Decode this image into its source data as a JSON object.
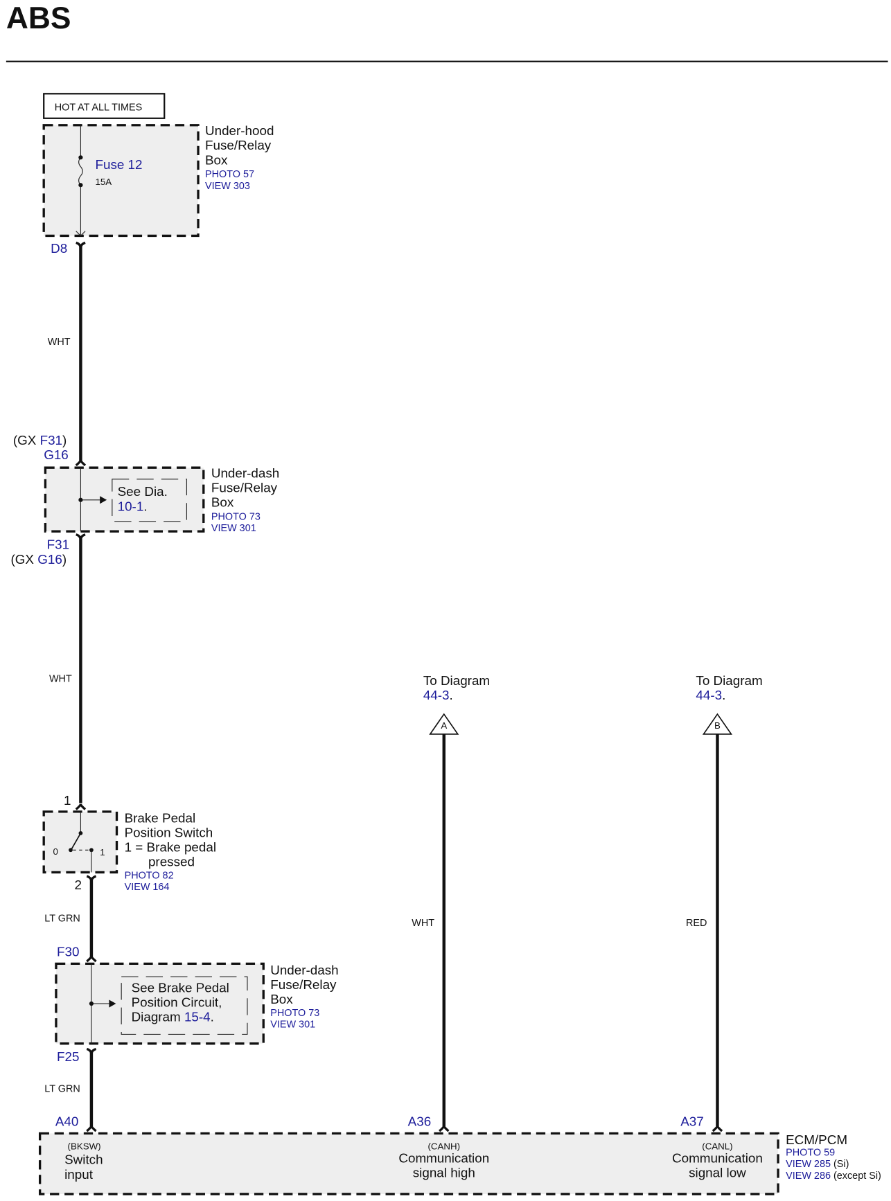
{
  "title": "ABS",
  "power_label": "HOT AT ALL TIMES",
  "underhood_box": {
    "name_lines": [
      "Under-hood",
      "Fuse/Relay",
      "Box"
    ],
    "photo": "PHOTO 57",
    "view": "VIEW 303",
    "fuse": "Fuse 12",
    "rating": "15A",
    "terminal": "D8"
  },
  "wire1_color": "WHT",
  "underdash_box_1": {
    "name_lines": [
      "Under-dash",
      "Fuse/Relay",
      "Box"
    ],
    "photo": "PHOTO 73",
    "view": "VIEW 301",
    "top_gx_prefix": "(GX ",
    "top_gx_terminal": "F31",
    "top_gx_suffix": ")",
    "top_terminal": "G16",
    "bottom_terminal": "F31",
    "bottom_gx_prefix": "(GX ",
    "bottom_gx_terminal": "G16",
    "bottom_gx_suffix": ")",
    "ref_text": "See Dia.",
    "ref_diagram": "10-1",
    "ref_period": "."
  },
  "wire2_color": "WHT",
  "brake_switch": {
    "pin_in": "1",
    "pin_out": "2",
    "pos0": "0",
    "pos1": "1",
    "name_lines": [
      "Brake Pedal",
      "Position Switch",
      "1 = Brake pedal",
      "pressed"
    ],
    "photo": "PHOTO 82",
    "view": "VIEW 164"
  },
  "wire3_color": "LT GRN",
  "underdash_box_2": {
    "name_lines": [
      "Under-dash",
      "Fuse/Relay",
      "Box"
    ],
    "photo": "PHOTO 73",
    "view": "VIEW 301",
    "top_terminal": "F30",
    "bottom_terminal": "F25",
    "ref_lines": [
      "See Brake Pedal",
      "Position Circuit,"
    ],
    "ref_prefix": "Diagram ",
    "ref_diagram": "15-4",
    "ref_period": "."
  },
  "wire4_color": "LT GRN",
  "offpage": [
    {
      "label": "To Diagram",
      "diagram": "44-3",
      "period": ".",
      "connector": "A",
      "wire_color": "WHT",
      "terminal": "A36",
      "signal": "(CANH)",
      "desc_lines": [
        "Communication",
        "signal high"
      ]
    },
    {
      "label": "To Diagram",
      "diagram": "44-3",
      "period": ".",
      "connector": "B",
      "wire_color": "RED",
      "terminal": "A37",
      "signal": "(CANL)",
      "desc_lines": [
        "Communication",
        "signal low"
      ]
    }
  ],
  "ecm": {
    "name": "ECM/PCM",
    "photo": "PHOTO 59",
    "view1": "VIEW 285",
    "view1_note": " (Si)",
    "view2": "VIEW 286",
    "view2_note": " (except Si)",
    "terminal": "A40",
    "signal": "(BKSW)",
    "desc_lines": [
      "Switch",
      "input"
    ]
  },
  "colors": {
    "link_blue": "#1c1c9a",
    "box_fill": "#eeeeee"
  }
}
